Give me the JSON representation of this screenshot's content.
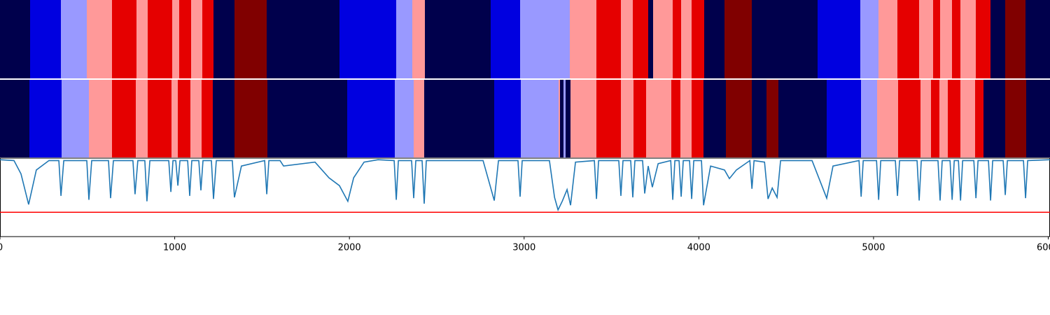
{
  "chart_data": {
    "type": "segmentation",
    "colors": [
      "#00004c",
      "#0000e0",
      "#9999ff",
      "#ff9999",
      "#e50000",
      "#800000"
    ],
    "segment_rows": [
      {
        "edges": [
          0,
          172,
          349,
          497,
          641,
          781,
          845,
          986,
          1026,
          1094,
          1158,
          1222,
          1342,
          1527,
          1943,
          2268,
          2360,
          2432,
          2809,
          2977,
          3262,
          3414,
          3554,
          3622,
          3710,
          3739,
          3851,
          3899,
          3959,
          4031,
          4147,
          4304,
          4680,
          4925,
          5029,
          5137,
          5261,
          5341,
          5381,
          5450,
          5498,
          5586,
          5670,
          5754,
          5870,
          6010
        ],
        "classes": [
          0,
          1,
          2,
          3,
          4,
          3,
          4,
          3,
          4,
          3,
          4,
          0,
          5,
          0,
          1,
          2,
          3,
          0,
          1,
          2,
          3,
          4,
          3,
          4,
          0,
          3,
          4,
          3,
          4,
          0,
          5,
          0,
          1,
          2,
          3,
          4,
          3,
          4,
          3,
          4,
          3,
          4,
          0,
          5,
          0
        ]
      },
      {
        "edges": [
          0,
          168,
          353,
          509,
          641,
          777,
          845,
          982,
          1018,
          1090,
          1154,
          1218,
          1342,
          1531,
          1987,
          2260,
          2368,
          2428,
          2829,
          2981,
          3198,
          3206,
          3226,
          3238,
          3266,
          3414,
          3554,
          3626,
          3699,
          3843,
          3895,
          3959,
          4027,
          4155,
          4304,
          4388,
          4456,
          4732,
          4928,
          5021,
          5141,
          5269,
          5329,
          5377,
          5425,
          5498,
          5582,
          5630,
          5754,
          5874,
          6010
        ],
        "classes": [
          0,
          1,
          2,
          3,
          4,
          3,
          4,
          3,
          4,
          3,
          4,
          0,
          5,
          0,
          1,
          2,
          3,
          0,
          1,
          2,
          3,
          0,
          2,
          0,
          3,
          4,
          3,
          4,
          3,
          4,
          3,
          4,
          0,
          5,
          0,
          5,
          0,
          1,
          2,
          3,
          4,
          3,
          4,
          3,
          4,
          3,
          4,
          0,
          5,
          0
        ]
      }
    ],
    "line": {
      "color": "#1f77b4",
      "x": [
        0,
        80,
        120,
        164,
        208,
        280,
        337,
        349,
        365,
        497,
        509,
        525,
        621,
        633,
        649,
        761,
        773,
        789,
        829,
        841,
        858,
        966,
        978,
        990,
        1006,
        1018,
        1030,
        1074,
        1086,
        1098,
        1138,
        1150,
        1162,
        1210,
        1222,
        1238,
        1330,
        1342,
        1382,
        1515,
        1527,
        1539,
        1603,
        1623,
        1803,
        1883,
        1943,
        1991,
        2024,
        2084,
        2164,
        2256,
        2268,
        2280,
        2356,
        2368,
        2380,
        2416,
        2428,
        2440,
        2765,
        2829,
        2853,
        2965,
        2977,
        2989,
        3145,
        3174,
        3194,
        3218,
        3246,
        3266,
        3294,
        3402,
        3414,
        3426,
        3542,
        3554,
        3566,
        3610,
        3622,
        3634,
        3678,
        3690,
        3710,
        3734,
        3767,
        3839,
        3851,
        3863,
        3887,
        3899,
        3911,
        3947,
        3959,
        3971,
        4015,
        4027,
        4067,
        4147,
        4175,
        4215,
        4292,
        4304,
        4316,
        4376,
        4396,
        4420,
        4448,
        4468,
        4648,
        4732,
        4768,
        4917,
        4929,
        4941,
        5017,
        5029,
        5041,
        5125,
        5137,
        5149,
        5249,
        5261,
        5273,
        5369,
        5381,
        5393,
        5438,
        5450,
        5462,
        5486,
        5498,
        5510,
        5574,
        5586,
        5598,
        5658,
        5670,
        5682,
        5742,
        5754,
        5766,
        5858,
        5870,
        5882,
        6010
      ],
      "values": [
        0.98,
        0.97,
        0.8,
        0.41,
        0.85,
        0.97,
        0.97,
        0.52,
        0.97,
        0.97,
        0.47,
        0.97,
        0.97,
        0.49,
        0.97,
        0.97,
        0.54,
        0.97,
        0.97,
        0.45,
        0.97,
        0.97,
        0.57,
        0.97,
        0.97,
        0.65,
        0.97,
        0.97,
        0.52,
        0.97,
        0.97,
        0.59,
        0.97,
        0.97,
        0.48,
        0.97,
        0.97,
        0.5,
        0.9,
        0.97,
        0.54,
        0.97,
        0.97,
        0.9,
        0.95,
        0.75,
        0.65,
        0.45,
        0.75,
        0.95,
        0.98,
        0.97,
        0.47,
        0.97,
        0.97,
        0.49,
        0.97,
        0.97,
        0.42,
        0.97,
        0.97,
        0.46,
        0.97,
        0.97,
        0.51,
        0.97,
        0.97,
        0.5,
        0.34,
        0.45,
        0.6,
        0.4,
        0.95,
        0.97,
        0.48,
        0.97,
        0.97,
        0.52,
        0.97,
        0.97,
        0.5,
        0.97,
        0.97,
        0.55,
        0.9,
        0.63,
        0.93,
        0.97,
        0.47,
        0.97,
        0.97,
        0.51,
        0.97,
        0.97,
        0.48,
        0.97,
        0.97,
        0.4,
        0.9,
        0.85,
        0.74,
        0.85,
        0.97,
        0.61,
        0.97,
        0.95,
        0.48,
        0.62,
        0.5,
        0.97,
        0.97,
        0.49,
        0.9,
        0.97,
        0.51,
        0.97,
        0.97,
        0.47,
        0.97,
        0.97,
        0.52,
        0.97,
        0.97,
        0.46,
        0.97,
        0.97,
        0.46,
        0.97,
        0.97,
        0.47,
        0.97,
        0.97,
        0.46,
        0.97,
        0.97,
        0.49,
        0.97,
        0.97,
        0.46,
        0.97,
        0.97,
        0.53,
        0.97,
        0.97,
        0.49,
        0.97,
        0.98
      ]
    },
    "threshold": {
      "value": 0.31,
      "color": "#ff0000"
    },
    "xlim": [
      0,
      6010
    ],
    "ylim": [
      0,
      1
    ],
    "xticks": [
      0,
      1000,
      2000,
      3000,
      4000,
      5000,
      6000
    ]
  }
}
